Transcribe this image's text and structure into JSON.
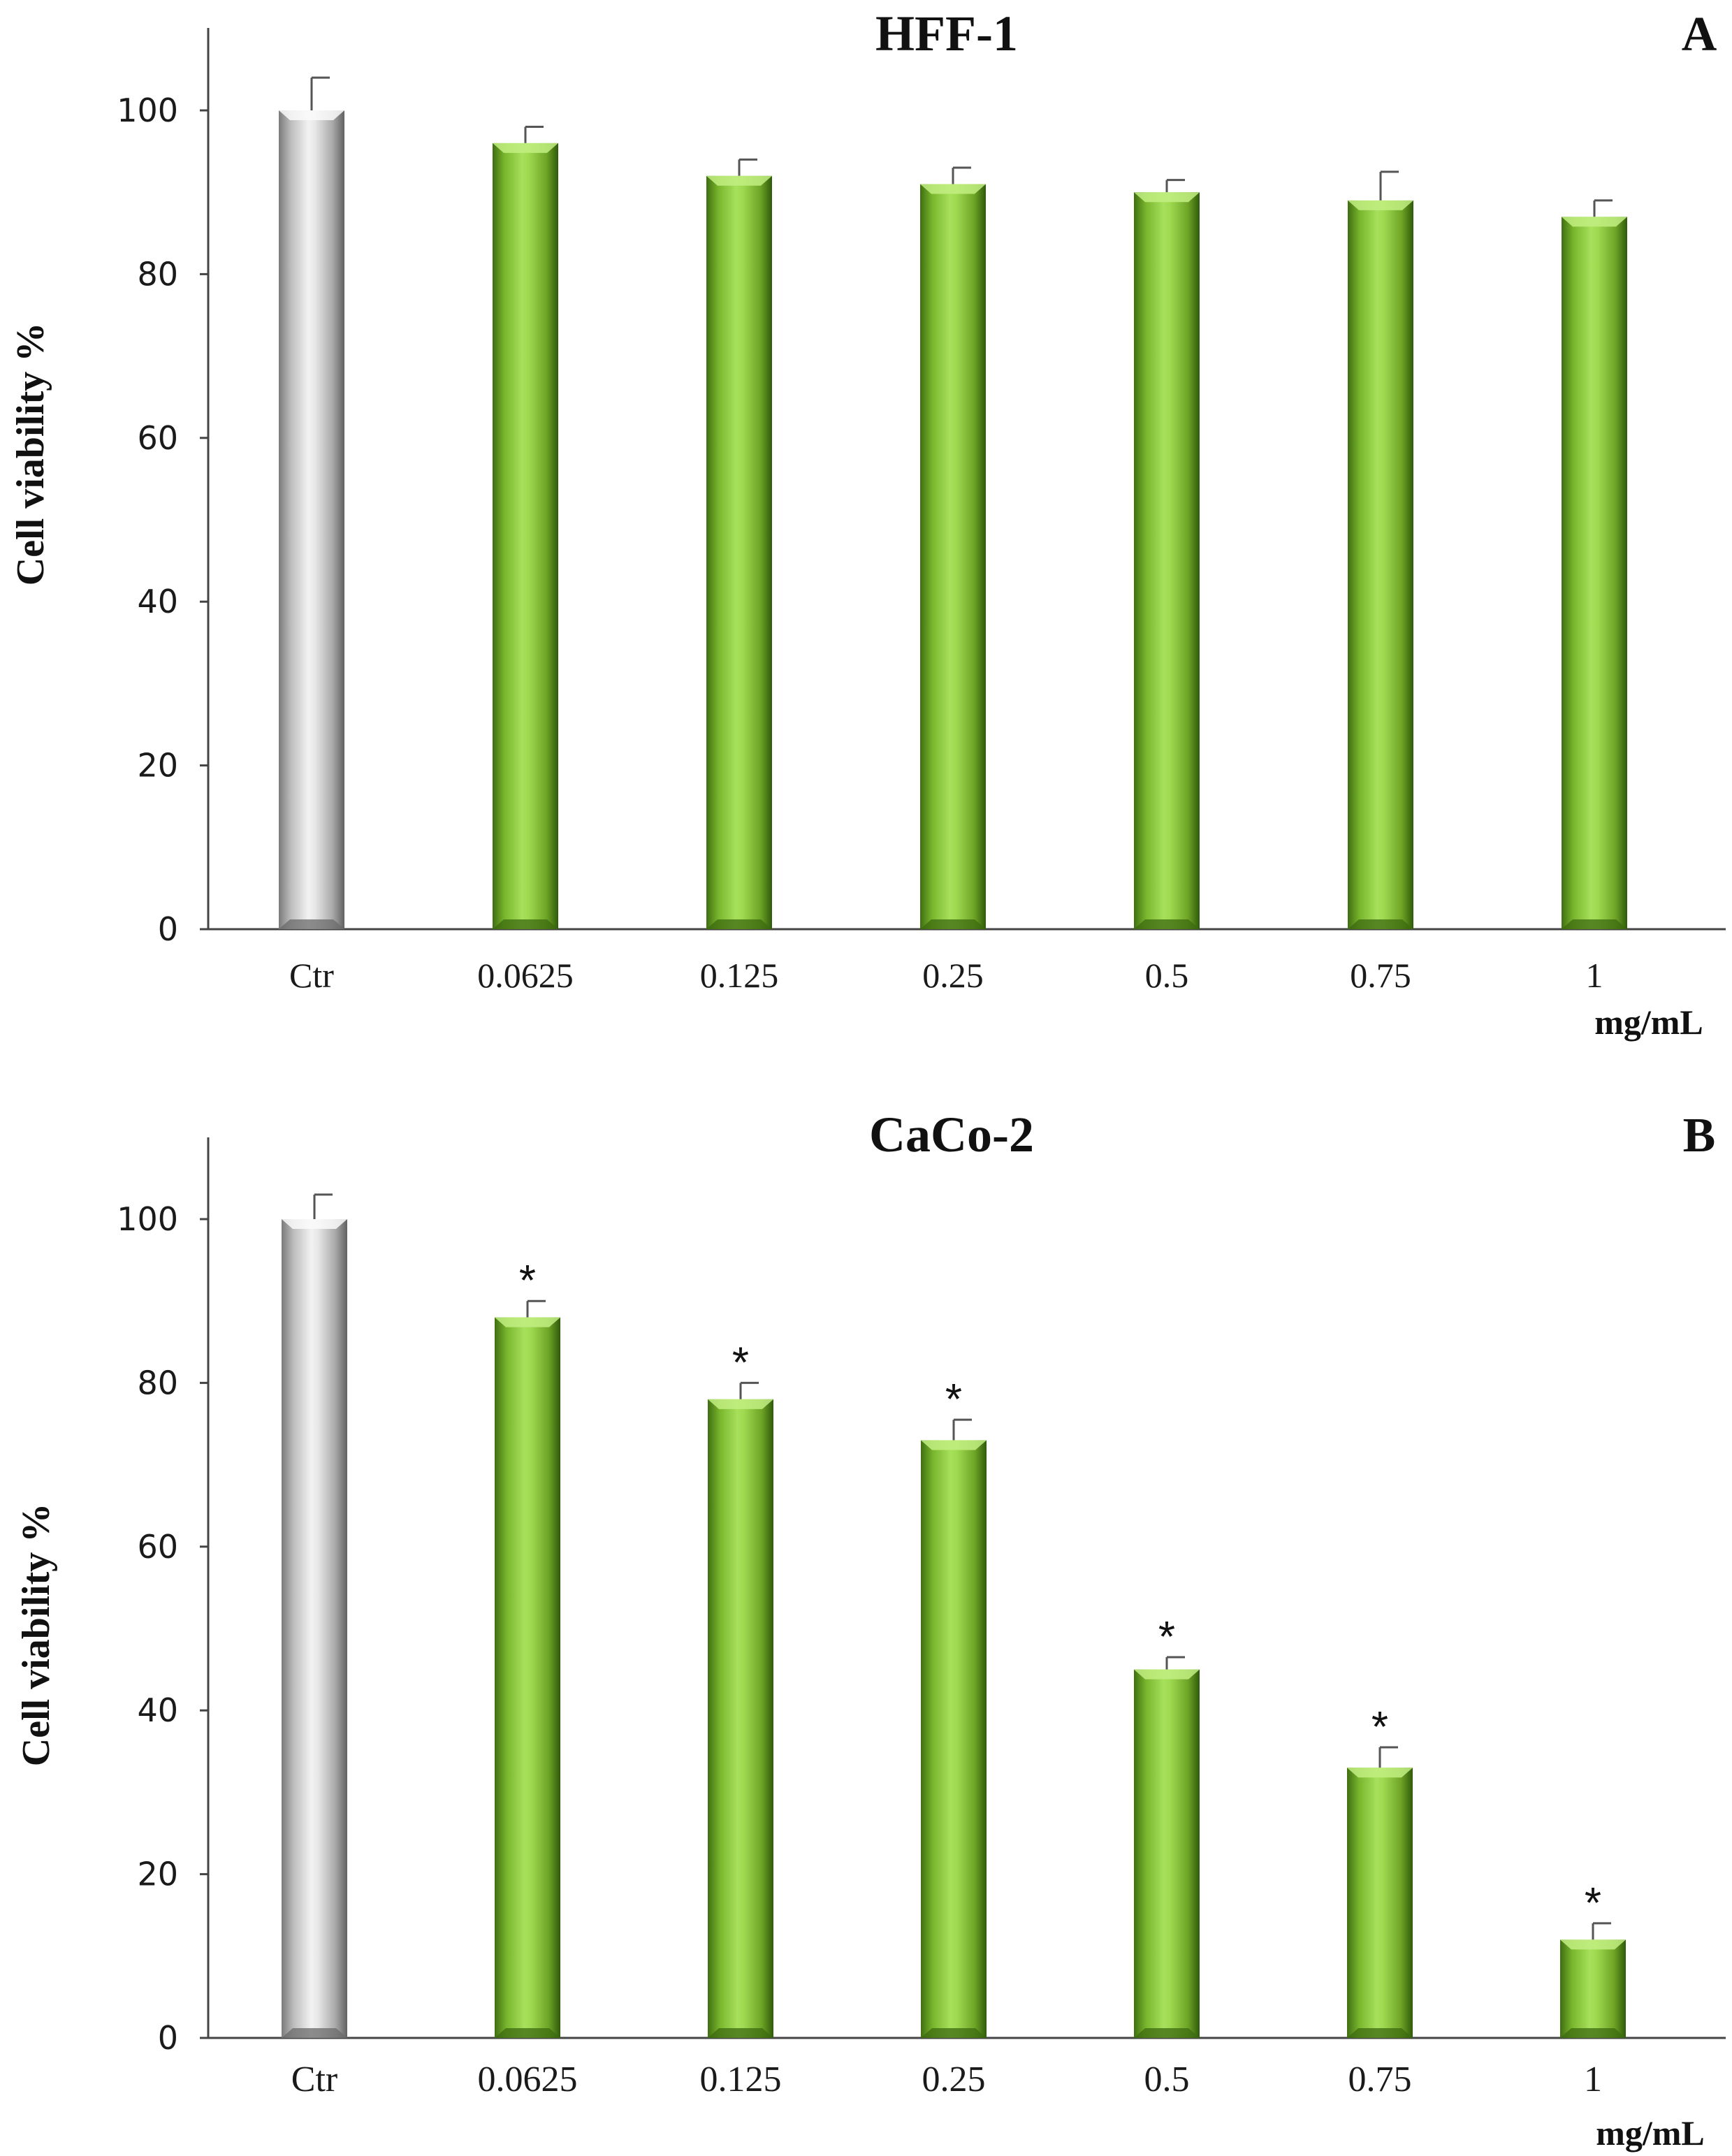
{
  "chart_data": [
    {
      "type": "bar",
      "panel_letter": "A",
      "title": "HFF-1",
      "ylabel": "Cell viability %",
      "unit_label": "mg/mL",
      "categories": [
        "Ctr",
        "0.0625",
        "0.125",
        "0.25",
        "0.5",
        "0.75",
        "1"
      ],
      "values": [
        100,
        96,
        92,
        91,
        90,
        89,
        87
      ],
      "errors": [
        4,
        2,
        2,
        2,
        1.5,
        3.5,
        2
      ],
      "significance": [
        "",
        "",
        "",
        "",
        "",
        "",
        ""
      ],
      "ylim": [
        0,
        110
      ],
      "yticks": [
        0,
        20,
        40,
        60,
        80,
        100
      ],
      "colors": {
        "control": "#bdbdbd",
        "treatment": "#8cc63f"
      }
    },
    {
      "type": "bar",
      "panel_letter": "B",
      "title": "CaCo-2",
      "ylabel": "Cell viability %",
      "unit_label": "mg/mL",
      "categories": [
        "Ctr",
        "0.0625",
        "0.125",
        "0.25",
        "0.5",
        "0.75",
        "1"
      ],
      "values": [
        100,
        88,
        78,
        73,
        45,
        33,
        12
      ],
      "errors": [
        3,
        2,
        2,
        2.5,
        1.5,
        2.5,
        2
      ],
      "significance": [
        "",
        "*",
        "*",
        "*",
        "*",
        "*",
        "*"
      ],
      "ylim": [
        0,
        110
      ],
      "yticks": [
        0,
        20,
        40,
        60,
        80,
        100
      ],
      "colors": {
        "control": "#bdbdbd",
        "treatment": "#8cc63f"
      }
    }
  ]
}
